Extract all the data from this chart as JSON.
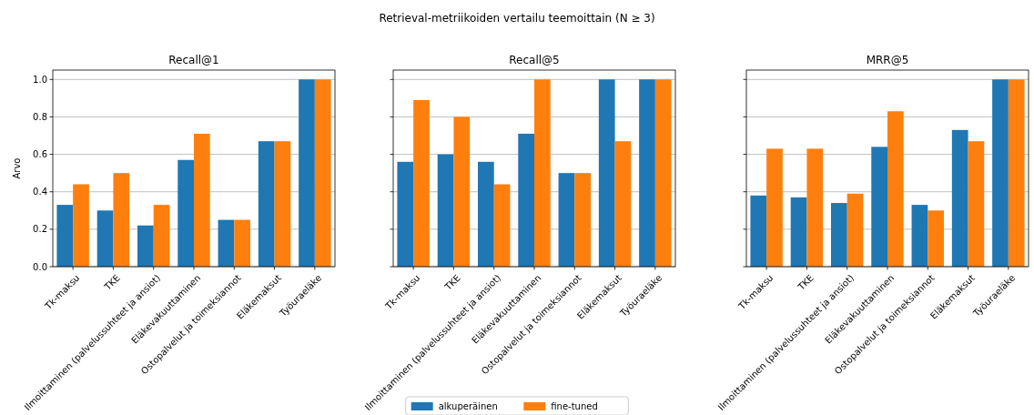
{
  "chart_data": [
    {
      "type": "bar",
      "title": "Recall@1",
      "ylabel": "Arvo",
      "annotations": [
        "Retrieval-metriikoiden vertailu teemoittain (N ≥ 3)"
      ],
      "categories": [
        "Tk-maksu",
        "TKE",
        "Ilmoittaminen (palvelussuhteet ja ansiot)",
        "Eläkevakuuttaminen",
        "Ostopalvelut ja toimeksiannot",
        "Eläkemaksut",
        "Työuraeläke"
      ],
      "series": [
        {
          "name": "alkuperäinen",
          "color": "#1f77b4",
          "values": [
            0.33,
            0.3,
            0.22,
            0.57,
            0.25,
            0.67,
            1.0
          ]
        },
        {
          "name": "fine-tuned",
          "color": "#ff7f0e",
          "values": [
            0.44,
            0.5,
            0.33,
            0.71,
            0.25,
            0.67,
            1.0
          ]
        }
      ],
      "ylim": [
        0,
        1.05
      ],
      "yticks": [
        {
          "value": 0,
          "label": "0.0"
        },
        {
          "value": 0.2,
          "label": "0.2"
        },
        {
          "value": 0.4,
          "label": "0.4"
        },
        {
          "value": 0.6,
          "label": "0.6"
        },
        {
          "value": 0.8,
          "label": "0.8"
        },
        {
          "value": 1,
          "label": "1.0"
        }
      ],
      "grid": "y",
      "legend": "bottom"
    },
    {
      "type": "bar",
      "title": "Recall@5",
      "categories": [
        "Tk-maksu",
        "TKE",
        "Ilmoittaminen (palvelussuhteet ja ansiot)",
        "Eläkevakuuttaminen",
        "Ostopalvelut ja toimeksiannot",
        "Eläkemaksut",
        "Työuraeläke"
      ],
      "series": [
        {
          "color": "#1f77b4",
          "values": [
            0.56,
            0.6,
            0.56,
            0.71,
            0.5,
            1.0,
            1.0
          ]
        },
        {
          "color": "#ff7f0e",
          "values": [
            0.89,
            0.8,
            0.44,
            1.0,
            0.5,
            0.67,
            1.0
          ]
        }
      ],
      "ylim": [
        0,
        1.05
      ],
      "yticks": [
        {
          "value": 0,
          "label": null
        },
        {
          "value": 0.2,
          "label": null
        },
        {
          "value": 0.4,
          "label": null
        },
        {
          "value": 0.6,
          "label": null
        },
        {
          "value": 0.8,
          "label": null
        },
        {
          "value": 1,
          "label": null
        }
      ],
      "grid": "y",
      "tick_labels": "x"
    },
    {
      "type": "bar",
      "title": "MRR@5",
      "categories": [
        "Tk-maksu",
        "TKE",
        "Ilmoittaminen (palvelussuhteet ja ansiot)",
        "Eläkevakuuttaminen",
        "Ostopalvelut ja toimeksiannot",
        "Eläkemaksut",
        "Työuraeläke"
      ],
      "series": [
        {
          "color": "#1f77b4",
          "values": [
            0.38,
            0.37,
            0.34,
            0.64,
            0.33,
            0.73,
            1.0
          ]
        },
        {
          "color": "#ff7f0e",
          "values": [
            0.63,
            0.63,
            0.39,
            0.83,
            0.3,
            0.67,
            1.0
          ]
        }
      ],
      "ylim": [
        0,
        1.05
      ],
      "yticks": [
        {
          "value": 0,
          "label": null
        },
        {
          "value": 0.2,
          "label": null
        },
        {
          "value": 0.4,
          "label": null
        },
        {
          "value": 0.6,
          "label": null
        },
        {
          "value": 0.8,
          "label": null
        },
        {
          "value": 1,
          "label": null
        }
      ],
      "grid": "y",
      "tick_labels": "x"
    }
  ]
}
